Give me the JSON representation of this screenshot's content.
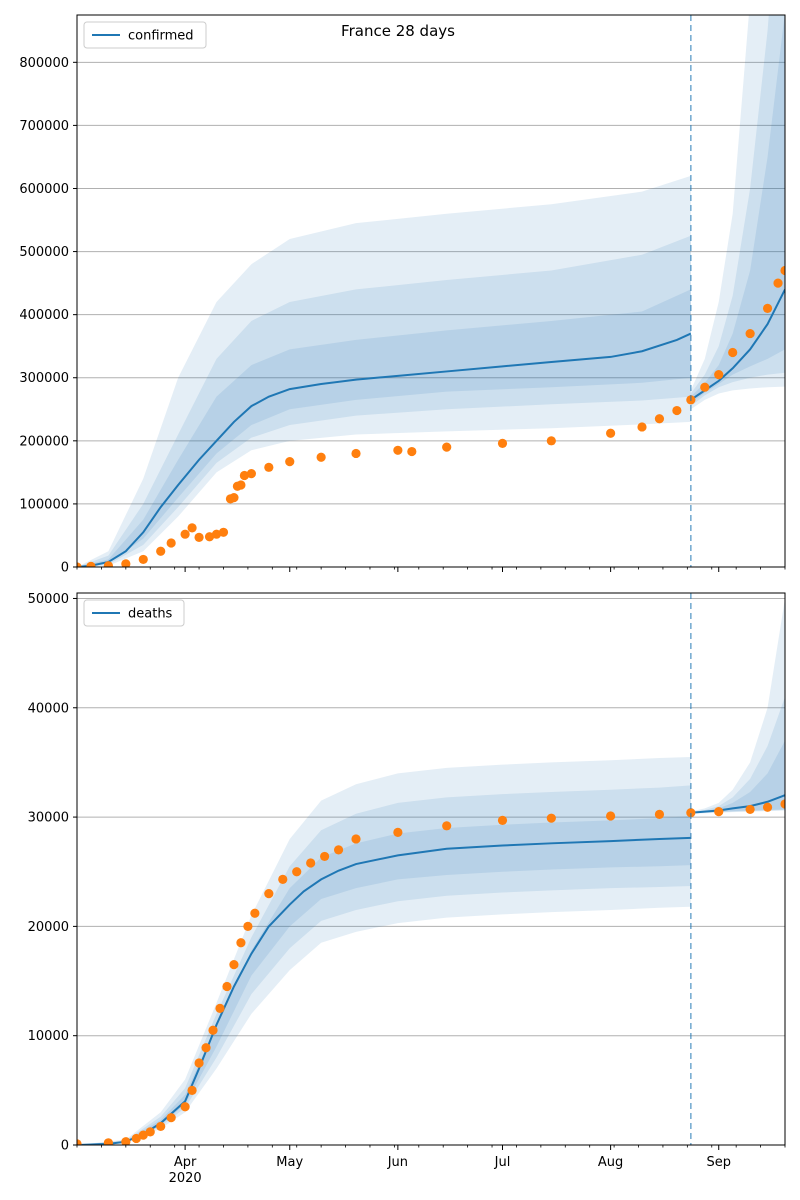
{
  "figure": {
    "title": "France 28 days"
  },
  "colors": {
    "model": "#1f77b4",
    "observed": "#ff7f0e",
    "band": "#1f77b4",
    "grid": "#b0b0b0"
  },
  "chart_data": [
    {
      "type": "line",
      "title": "France 28 days",
      "legend": {
        "entries": [
          "confirmed"
        ],
        "placement": "top-left"
      },
      "xlabel": "",
      "ylabel": "",
      "x_range": [
        "2020-03-01",
        "2020-09-20"
      ],
      "x_ticks": [
        {
          "date": "2020-04-01",
          "label": "Apr",
          "sublabel": "2020"
        },
        {
          "date": "2020-05-01",
          "label": "May"
        },
        {
          "date": "2020-06-01",
          "label": "Jun"
        },
        {
          "date": "2020-07-01",
          "label": "Jul"
        },
        {
          "date": "2020-08-01",
          "label": "Aug"
        },
        {
          "date": "2020-09-01",
          "label": "Sep"
        }
      ],
      "show_x_labels": false,
      "ylim": [
        0,
        875000
      ],
      "y_ticks": [
        0,
        100000,
        200000,
        300000,
        400000,
        500000,
        600000,
        700000,
        800000
      ],
      "grid": "horizontal",
      "forecast_start": "2020-08-24",
      "model": {
        "name": "confirmed",
        "x": [
          "2020-03-01",
          "2020-03-05",
          "2020-03-10",
          "2020-03-15",
          "2020-03-20",
          "2020-03-25",
          "2020-03-30",
          "2020-04-05",
          "2020-04-10",
          "2020-04-15",
          "2020-04-20",
          "2020-04-25",
          "2020-05-01",
          "2020-05-10",
          "2020-05-20",
          "2020-06-01",
          "2020-06-15",
          "2020-07-01",
          "2020-07-15",
          "2020-08-01",
          "2020-08-10",
          "2020-08-20",
          "2020-08-24"
        ],
        "y": [
          0,
          2000,
          8000,
          25000,
          55000,
          95000,
          130000,
          170000,
          200000,
          230000,
          255000,
          270000,
          282000,
          290000,
          297000,
          303000,
          310000,
          318000,
          325000,
          333000,
          342000,
          360000,
          370000
        ]
      },
      "bands": [
        {
          "x": [
            "2020-03-01",
            "2020-03-10",
            "2020-03-20",
            "2020-03-30",
            "2020-04-10",
            "2020-04-20",
            "2020-05-01",
            "2020-05-20",
            "2020-06-15",
            "2020-07-15",
            "2020-08-10",
            "2020-08-24"
          ],
          "lower": [
            0,
            2000,
            25000,
            80000,
            150000,
            185000,
            200000,
            210000,
            215000,
            220000,
            226000,
            230000
          ],
          "upper": [
            0,
            25000,
            140000,
            300000,
            420000,
            480000,
            520000,
            545000,
            560000,
            575000,
            595000,
            620000
          ]
        },
        {
          "x": [
            "2020-03-01",
            "2020-03-10",
            "2020-03-20",
            "2020-03-30",
            "2020-04-10",
            "2020-04-20",
            "2020-05-01",
            "2020-05-20",
            "2020-06-15",
            "2020-07-15",
            "2020-08-10",
            "2020-08-24"
          ],
          "lower": [
            0,
            4000,
            35000,
            95000,
            165000,
            205000,
            225000,
            240000,
            250000,
            258000,
            264000,
            270000
          ],
          "upper": [
            0,
            18000,
            100000,
            210000,
            330000,
            390000,
            420000,
            440000,
            455000,
            470000,
            495000,
            525000
          ]
        },
        {
          "x": [
            "2020-03-01",
            "2020-03-10",
            "2020-03-20",
            "2020-03-30",
            "2020-04-10",
            "2020-04-20",
            "2020-05-01",
            "2020-05-20",
            "2020-06-15",
            "2020-07-15",
            "2020-08-10",
            "2020-08-24"
          ],
          "lower": [
            0,
            6000,
            45000,
            110000,
            180000,
            225000,
            250000,
            265000,
            278000,
            285000,
            292000,
            300000
          ],
          "upper": [
            0,
            12000,
            75000,
            170000,
            270000,
            320000,
            345000,
            360000,
            375000,
            390000,
            405000,
            440000
          ]
        }
      ],
      "forecast": {
        "x": [
          "2020-08-24",
          "2020-08-28",
          "2020-09-01",
          "2020-09-05",
          "2020-09-10",
          "2020-09-15",
          "2020-09-20"
        ],
        "y": [
          265000,
          280000,
          295000,
          315000,
          345000,
          385000,
          440000
        ],
        "bands": [
          {
            "lower": [
              250000,
              265000,
              275000,
              280000,
              283000,
              285000,
              286000
            ],
            "upper": [
              280000,
              330000,
              420000,
              560000,
              900000,
              1400000,
              2000000
            ]
          },
          {
            "lower": [
              255000,
              272000,
              285000,
              293000,
              300000,
              305000,
              308000
            ],
            "upper": [
              275000,
              305000,
              350000,
              430000,
              600000,
              850000,
              1200000
            ]
          },
          {
            "lower": [
              260000,
              276000,
              290000,
              305000,
              318000,
              330000,
              345000
            ],
            "upper": [
              270000,
              292000,
              320000,
              370000,
              470000,
              650000,
              880000
            ]
          }
        ]
      },
      "observed": {
        "x": [
          "2020-03-01",
          "2020-03-05",
          "2020-03-10",
          "2020-03-15",
          "2020-03-20",
          "2020-03-25",
          "2020-03-28",
          "2020-04-01",
          "2020-04-03",
          "2020-04-05",
          "2020-04-08",
          "2020-04-10",
          "2020-04-12",
          "2020-04-14",
          "2020-04-15",
          "2020-04-16",
          "2020-04-17",
          "2020-04-18",
          "2020-04-20",
          "2020-04-25",
          "2020-05-01",
          "2020-05-10",
          "2020-05-20",
          "2020-06-01",
          "2020-06-05",
          "2020-06-15",
          "2020-07-01",
          "2020-07-15",
          "2020-08-01",
          "2020-08-10",
          "2020-08-15",
          "2020-08-20",
          "2020-08-24",
          "2020-08-28",
          "2020-09-01",
          "2020-09-05",
          "2020-09-10",
          "2020-09-15",
          "2020-09-18",
          "2020-09-20"
        ],
        "y": [
          100,
          1000,
          2000,
          5000,
          12000,
          25000,
          38000,
          52000,
          62000,
          47000,
          48000,
          52000,
          55000,
          108000,
          110000,
          128000,
          130000,
          145000,
          148000,
          158000,
          167000,
          174000,
          180000,
          185000,
          183000,
          190000,
          196000,
          200000,
          212000,
          222000,
          235000,
          248000,
          265000,
          285000,
          305000,
          340000,
          370000,
          410000,
          450000,
          470000
        ]
      }
    },
    {
      "type": "line",
      "title": "",
      "legend": {
        "entries": [
          "deaths"
        ],
        "placement": "top-left"
      },
      "xlabel": "",
      "ylabel": "",
      "x_range": [
        "2020-03-01",
        "2020-09-20"
      ],
      "x_ticks": [
        {
          "date": "2020-04-01",
          "label": "Apr",
          "sublabel": "2020"
        },
        {
          "date": "2020-05-01",
          "label": "May"
        },
        {
          "date": "2020-06-01",
          "label": "Jun"
        },
        {
          "date": "2020-07-01",
          "label": "Jul"
        },
        {
          "date": "2020-08-01",
          "label": "Aug"
        },
        {
          "date": "2020-09-01",
          "label": "Sep"
        }
      ],
      "show_x_labels": true,
      "ylim": [
        0,
        50500
      ],
      "y_ticks": [
        0,
        10000,
        20000,
        30000,
        40000,
        50000
      ],
      "grid": "horizontal",
      "forecast_start": "2020-08-24",
      "model": {
        "name": "deaths",
        "x": [
          "2020-03-01",
          "2020-03-10",
          "2020-03-15",
          "2020-03-20",
          "2020-03-25",
          "2020-04-01",
          "2020-04-05",
          "2020-04-10",
          "2020-04-15",
          "2020-04-20",
          "2020-04-25",
          "2020-05-01",
          "2020-05-05",
          "2020-05-10",
          "2020-05-15",
          "2020-05-20",
          "2020-06-01",
          "2020-06-15",
          "2020-07-01",
          "2020-07-15",
          "2020-08-01",
          "2020-08-15",
          "2020-08-24"
        ],
        "y": [
          0,
          100,
          300,
          1000,
          2000,
          4000,
          7000,
          11000,
          14500,
          17500,
          20000,
          22000,
          23200,
          24300,
          25100,
          25700,
          26500,
          27100,
          27400,
          27600,
          27800,
          28000,
          28100
        ]
      },
      "bands": [
        {
          "x": [
            "2020-03-01",
            "2020-03-15",
            "2020-03-25",
            "2020-04-01",
            "2020-04-10",
            "2020-04-20",
            "2020-05-01",
            "2020-05-10",
            "2020-05-20",
            "2020-06-01",
            "2020-06-15",
            "2020-07-01",
            "2020-07-15",
            "2020-08-01",
            "2020-08-15",
            "2020-08-24"
          ],
          "lower": [
            0,
            200,
            1500,
            3000,
            7000,
            12000,
            16000,
            18500,
            19500,
            20300,
            20800,
            21100,
            21300,
            21500,
            21700,
            21800
          ],
          "upper": [
            0,
            500,
            3000,
            6000,
            13000,
            21000,
            28000,
            31500,
            33000,
            34000,
            34500,
            34800,
            35000,
            35200,
            35400,
            35500
          ]
        },
        {
          "x": [
            "2020-03-01",
            "2020-03-15",
            "2020-03-25",
            "2020-04-01",
            "2020-04-10",
            "2020-04-20",
            "2020-05-01",
            "2020-05-10",
            "2020-05-20",
            "2020-06-01",
            "2020-06-15",
            "2020-07-01",
            "2020-07-15",
            "2020-08-01",
            "2020-08-15",
            "2020-08-24"
          ],
          "lower": [
            0,
            230,
            1700,
            3400,
            8000,
            13800,
            18000,
            20500,
            21500,
            22300,
            22800,
            23100,
            23300,
            23500,
            23600,
            23700
          ],
          "upper": [
            0,
            420,
            2600,
            5200,
            12000,
            19000,
            25500,
            28800,
            30300,
            31300,
            31800,
            32100,
            32300,
            32500,
            32700,
            32900
          ]
        },
        {
          "x": [
            "2020-03-01",
            "2020-03-15",
            "2020-03-25",
            "2020-04-01",
            "2020-04-10",
            "2020-04-20",
            "2020-05-01",
            "2020-05-10",
            "2020-05-20",
            "2020-06-01",
            "2020-06-15",
            "2020-07-01",
            "2020-07-15",
            "2020-08-01",
            "2020-08-15",
            "2020-08-24"
          ],
          "lower": [
            0,
            260,
            1850,
            3700,
            9000,
            15500,
            20000,
            22500,
            23500,
            24300,
            24700,
            25000,
            25200,
            25400,
            25500,
            25600
          ],
          "upper": [
            0,
            370,
            2300,
            4600,
            11000,
            17800,
            23500,
            26300,
            27600,
            28500,
            29000,
            29300,
            29500,
            29700,
            29900,
            30100
          ]
        }
      ],
      "forecast": {
        "x": [
          "2020-08-24",
          "2020-08-28",
          "2020-09-01",
          "2020-09-05",
          "2020-09-10",
          "2020-09-15",
          "2020-09-20"
        ],
        "y": [
          30400,
          30500,
          30600,
          30800,
          31000,
          31400,
          32000
        ],
        "bands": [
          {
            "lower": [
              30300,
              30350,
              30400,
              30450,
              30500,
              30550,
              30600
            ],
            "upper": [
              30500,
              30800,
              31300,
              32500,
              35000,
              40000,
              50000
            ]
          },
          {
            "lower": [
              30350,
              30400,
              30450,
              30500,
              30550,
              30600,
              30650
            ],
            "upper": [
              30450,
              30650,
              31000,
              31800,
              33500,
              36500,
              41000
            ]
          },
          {
            "lower": [
              30380,
              30430,
              30480,
              30530,
              30600,
              30650,
              30700
            ],
            "upper": [
              30420,
              30550,
              30800,
              31300,
              32300,
              34000,
              37000
            ]
          }
        ]
      },
      "observed": {
        "x": [
          "2020-03-01",
          "2020-03-10",
          "2020-03-15",
          "2020-03-18",
          "2020-03-20",
          "2020-03-22",
          "2020-03-25",
          "2020-03-28",
          "2020-04-01",
          "2020-04-03",
          "2020-04-05",
          "2020-04-07",
          "2020-04-09",
          "2020-04-11",
          "2020-04-13",
          "2020-04-15",
          "2020-04-17",
          "2020-04-19",
          "2020-04-21",
          "2020-04-25",
          "2020-04-29",
          "2020-05-03",
          "2020-05-07",
          "2020-05-11",
          "2020-05-15",
          "2020-05-20",
          "2020-06-01",
          "2020-06-15",
          "2020-07-01",
          "2020-07-15",
          "2020-08-01",
          "2020-08-15",
          "2020-08-24",
          "2020-09-01",
          "2020-09-10",
          "2020-09-15",
          "2020-09-20"
        ],
        "y": [
          100,
          200,
          300,
          600,
          900,
          1200,
          1700,
          2500,
          3500,
          5000,
          7500,
          8900,
          10500,
          12500,
          14500,
          16500,
          18500,
          20000,
          21200,
          23000,
          24300,
          25000,
          25800,
          26400,
          27000,
          28000,
          28600,
          29200,
          29700,
          29900,
          30100,
          30250,
          30400,
          30500,
          30700,
          30900,
          31200
        ]
      }
    }
  ]
}
